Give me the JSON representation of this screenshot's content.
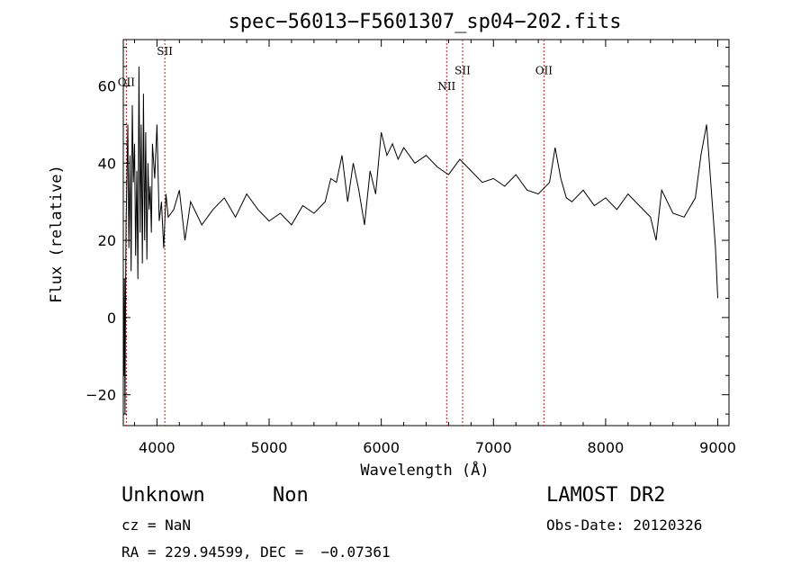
{
  "chart_data": {
    "type": "line",
    "title": "spec−56013−F5601307_sp04−202.fits",
    "xlabel": "Wavelength (Å)",
    "ylabel": "Flux (relative)",
    "xlim": [
      3700,
      9100
    ],
    "ylim": [
      -28,
      72
    ],
    "xticks": [
      4000,
      5000,
      6000,
      7000,
      8000,
      9000
    ],
    "yticks": [
      -20,
      0,
      20,
      40,
      60
    ],
    "ytick_labels": [
      "−20",
      "0",
      "20",
      "40",
      "60"
    ],
    "grid": false,
    "emission_lines": [
      {
        "label": "OII",
        "x": 3727,
        "label_y": 60
      },
      {
        "label": "SII",
        "x": 4070,
        "label_y": 68
      },
      {
        "label": "NII",
        "x": 6583,
        "label_y": 59
      },
      {
        "label": "SII",
        "x": 6725,
        "label_y": 63
      },
      {
        "label": "OII",
        "x": 7450,
        "label_y": 63
      }
    ],
    "series": [
      {
        "x": [
          3705,
          3710,
          3715,
          3720,
          3725,
          3730,
          3740,
          3750,
          3760,
          3770,
          3780,
          3790,
          3800,
          3810,
          3820,
          3830,
          3840,
          3850,
          3860,
          3870,
          3880,
          3890,
          3900,
          3910,
          3920,
          3930,
          3940,
          3950,
          3960,
          3980,
          4000,
          4020,
          4040,
          4060,
          4080,
          4100,
          4150,
          4200,
          4250,
          4300,
          4400,
          4500,
          4600,
          4700,
          4800,
          4900,
          5000,
          5100,
          5200,
          5300,
          5400,
          5500,
          5550,
          5600,
          5650,
          5700,
          5750,
          5800,
          5850,
          5900,
          5950,
          6000,
          6050,
          6100,
          6150,
          6200,
          6300,
          6400,
          6500,
          6600,
          6700,
          6800,
          6900,
          7000,
          7100,
          7200,
          7300,
          7400,
          7500,
          7550,
          7600,
          7650,
          7700,
          7800,
          7900,
          8000,
          8100,
          8200,
          8300,
          8400,
          8450,
          8500,
          8600,
          8700,
          8800,
          8850,
          8900,
          8950,
          8980,
          9000
        ],
        "y": [
          -15,
          10,
          -25,
          5,
          25,
          32,
          50,
          18,
          42,
          12,
          55,
          35,
          45,
          16,
          38,
          10,
          65,
          22,
          50,
          14,
          58,
          20,
          48,
          15,
          40,
          28,
          34,
          22,
          45,
          36,
          50,
          25,
          30,
          18,
          32,
          26,
          28,
          33,
          20,
          30,
          24,
          28,
          31,
          26,
          32,
          28,
          25,
          27,
          24,
          29,
          27,
          30,
          36,
          35,
          42,
          30,
          40,
          33,
          24,
          38,
          32,
          48,
          42,
          45,
          41,
          44,
          40,
          42,
          39,
          37,
          41,
          38,
          35,
          36,
          34,
          37,
          33,
          32,
          35,
          44,
          36,
          31,
          30,
          33,
          29,
          31,
          28,
          32,
          29,
          26,
          20,
          33,
          27,
          26,
          31,
          42,
          50,
          30,
          18,
          5
        ]
      }
    ]
  },
  "info": {
    "classification": "Unknown",
    "subclass": "Non",
    "survey": "LAMOST DR2",
    "cz": "cz = NaN",
    "obs_date": "Obs-Date: 20120326",
    "coords": "RA = 229.94599, DEC =  −0.07361"
  }
}
